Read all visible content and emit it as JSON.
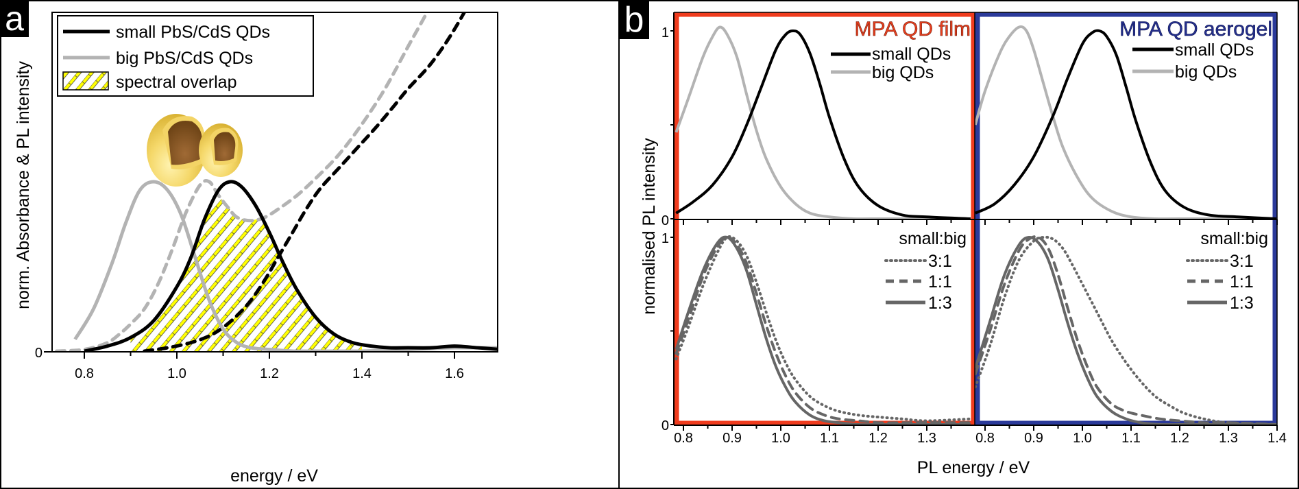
{
  "chart_data": [
    {
      "panel": "a",
      "type": "line",
      "xlabel": "energy / eV",
      "ylabel": "norm. Absorbance & PL intensity",
      "xlim": [
        0.72,
        1.75
      ],
      "ylim": [
        0,
        2.0
      ],
      "xticks": [
        "0.8",
        "1.0",
        "1.2",
        "1.4",
        "1.6"
      ],
      "xtick_values": [
        0.8,
        1.0,
        1.2,
        1.4,
        1.6
      ],
      "yticks": [
        "0"
      ],
      "ytick_values": [
        0
      ],
      "legend": {
        "placement": "top-left",
        "entries": [
          {
            "label": "small PbS/CdS QDs",
            "color": "#000000",
            "style": "solid"
          },
          {
            "label": "big PbS/CdS QDs",
            "color": "#b3b3b3",
            "style": "solid"
          },
          {
            "label": "spectral overlap",
            "color": "#ffff00",
            "style": "hatch"
          }
        ]
      },
      "series": [
        {
          "name": "small PbS/CdS QDs PL",
          "color": "#000000",
          "style": "solid",
          "kind": "PL",
          "x": [
            0.8,
            0.85,
            0.9,
            0.95,
            1.0,
            1.03,
            1.06,
            1.09,
            1.115,
            1.14,
            1.17,
            1.2,
            1.23,
            1.26,
            1.3,
            1.34,
            1.38,
            1.42,
            1.46,
            1.5,
            1.55,
            1.6,
            1.65,
            1.7,
            1.74
          ],
          "y": [
            0.0,
            0.03,
            0.08,
            0.18,
            0.38,
            0.55,
            0.78,
            0.95,
            1.0,
            0.97,
            0.86,
            0.7,
            0.52,
            0.36,
            0.2,
            0.1,
            0.05,
            0.03,
            0.02,
            0.02,
            0.02,
            0.03,
            0.02,
            0.01,
            0.0
          ]
        },
        {
          "name": "big PbS/CdS QDs PL",
          "color": "#b3b3b3",
          "style": "solid",
          "kind": "PL",
          "x": [
            0.78,
            0.82,
            0.86,
            0.89,
            0.92,
            0.95,
            0.98,
            1.01,
            1.04,
            1.07,
            1.1,
            1.13,
            1.16,
            1.2,
            1.25,
            1.3,
            1.4,
            1.5,
            1.6,
            1.7,
            1.74
          ],
          "y": [
            0.07,
            0.25,
            0.52,
            0.76,
            0.95,
            1.0,
            0.95,
            0.8,
            0.55,
            0.3,
            0.13,
            0.05,
            0.02,
            0.01,
            0.0,
            0.0,
            0.0,
            0.01,
            0.02,
            0.02,
            0.03
          ]
        },
        {
          "name": "big PbS/CdS QDs absorbance",
          "color": "#b3b3b3",
          "style": "dashed",
          "kind": "absorbance",
          "x": [
            0.74,
            0.8,
            0.85,
            0.88,
            0.9,
            0.93,
            0.96,
            0.99,
            1.02,
            1.05,
            1.07,
            1.09,
            1.11,
            1.13,
            1.16,
            1.19,
            1.22,
            1.26,
            1.3,
            1.35,
            1.4,
            1.45,
            1.5,
            1.55,
            1.6,
            1.65,
            1.7
          ],
          "y": [
            0.0,
            0.01,
            0.05,
            0.11,
            0.16,
            0.25,
            0.4,
            0.6,
            0.82,
            0.98,
            1.0,
            0.92,
            0.85,
            0.79,
            0.77,
            0.79,
            0.84,
            0.92,
            1.02,
            1.16,
            1.34,
            1.55,
            1.8,
            2.05,
            2.35,
            2.7,
            3.0
          ]
        },
        {
          "name": "small PbS/CdS QDs absorbance",
          "color": "#000000",
          "style": "dashed",
          "kind": "absorbance",
          "x": [
            0.93,
            0.98,
            1.03,
            1.07,
            1.1,
            1.13,
            1.16,
            1.19,
            1.22,
            1.25,
            1.28,
            1.31,
            1.35,
            1.39,
            1.43,
            1.47,
            1.5,
            1.55,
            1.6,
            1.65,
            1.7,
            1.74
          ],
          "y": [
            0.0,
            0.02,
            0.05,
            0.09,
            0.14,
            0.21,
            0.3,
            0.42,
            0.56,
            0.7,
            0.84,
            0.96,
            1.08,
            1.2,
            1.32,
            1.45,
            1.55,
            1.7,
            1.9,
            2.15,
            2.45,
            2.8
          ]
        }
      ],
      "overlap_region": {
        "x_from": 0.9,
        "x_to": 1.4
      }
    },
    {
      "panel": "b-film-top",
      "type": "line",
      "title": "MPA QD film",
      "title_color": "#e8401f",
      "frame_color": "#f03c1e",
      "xlim": [
        0.78,
        1.39
      ],
      "ylim": [
        0,
        1.1
      ],
      "yticks": [
        "0",
        "1"
      ],
      "ytick_values": [
        0,
        1
      ],
      "legend": {
        "placement": "top-right",
        "entries": [
          {
            "label": "small QDs",
            "color": "#000000",
            "style": "solid"
          },
          {
            "label": "big QDs",
            "color": "#b3b3b3",
            "style": "solid"
          }
        ]
      },
      "series": [
        {
          "name": "small QDs",
          "color": "#000000",
          "style": "solid",
          "x": [
            0.785,
            0.82,
            0.86,
            0.9,
            0.93,
            0.96,
            0.99,
            1.01,
            1.025,
            1.04,
            1.06,
            1.08,
            1.1,
            1.13,
            1.16,
            1.2,
            1.25,
            1.3,
            1.39
          ],
          "y": [
            0.03,
            0.09,
            0.18,
            0.33,
            0.5,
            0.7,
            0.9,
            0.98,
            1.0,
            0.98,
            0.88,
            0.72,
            0.54,
            0.32,
            0.17,
            0.07,
            0.02,
            0.01,
            0.0
          ]
        },
        {
          "name": "big QDs",
          "color": "#b3b3b3",
          "style": "solid",
          "x": [
            0.785,
            0.81,
            0.84,
            0.86,
            0.875,
            0.89,
            0.91,
            0.93,
            0.95,
            0.97,
            1.0,
            1.03,
            1.06,
            1.1,
            1.15,
            1.2,
            1.39
          ],
          "y": [
            0.46,
            0.64,
            0.86,
            0.97,
            1.02,
            0.98,
            0.86,
            0.66,
            0.47,
            0.32,
            0.17,
            0.08,
            0.03,
            0.01,
            0.0,
            0.0,
            0.0
          ]
        }
      ]
    },
    {
      "panel": "b-aerogel-top",
      "type": "line",
      "title": "MPA QD aerogel",
      "title_color": "#25308f",
      "frame_color": "#2b3a9a",
      "xlim": [
        0.78,
        1.4
      ],
      "ylim": [
        0,
        1.1
      ],
      "legend": {
        "placement": "top-right",
        "entries": [
          {
            "label": "small QDs",
            "color": "#000000",
            "style": "solid"
          },
          {
            "label": "big QDs",
            "color": "#b3b3b3",
            "style": "solid"
          }
        ]
      },
      "series": [
        {
          "name": "small QDs",
          "color": "#000000",
          "style": "solid",
          "x": [
            0.78,
            0.82,
            0.86,
            0.9,
            0.94,
            0.97,
            1.0,
            1.02,
            1.035,
            1.05,
            1.07,
            1.09,
            1.11,
            1.14,
            1.17,
            1.21,
            1.26,
            1.32,
            1.4
          ],
          "y": [
            0.03,
            0.08,
            0.18,
            0.33,
            0.55,
            0.75,
            0.93,
            0.99,
            1.0,
            0.97,
            0.87,
            0.7,
            0.52,
            0.3,
            0.15,
            0.06,
            0.02,
            0.01,
            0.0
          ]
        },
        {
          "name": "big QDs",
          "color": "#b3b3b3",
          "style": "solid",
          "x": [
            0.78,
            0.8,
            0.83,
            0.85,
            0.87,
            0.885,
            0.9,
            0.92,
            0.94,
            0.96,
            0.99,
            1.02,
            1.06,
            1.1,
            1.15,
            1.2,
            1.4
          ],
          "y": [
            0.5,
            0.68,
            0.88,
            0.97,
            1.02,
            1.0,
            0.9,
            0.72,
            0.54,
            0.38,
            0.22,
            0.11,
            0.04,
            0.01,
            0.0,
            0.0,
            0.0
          ]
        }
      ]
    },
    {
      "panel": "b-film-bottom",
      "type": "line",
      "xlim": [
        0.78,
        1.39
      ],
      "ylim": [
        0,
        1.1
      ],
      "legend": {
        "placement": "top-right",
        "title": "small:big",
        "entries": [
          {
            "label": "3:1",
            "color": "#666666",
            "style": "dotted"
          },
          {
            "label": "1:1",
            "color": "#666666",
            "style": "dashed"
          },
          {
            "label": "1:3",
            "color": "#666666",
            "style": "solid"
          }
        ]
      },
      "series": [
        {
          "name": "3:1",
          "color": "#666666",
          "style": "dotted",
          "x": [
            0.785,
            0.81,
            0.84,
            0.87,
            0.89,
            0.91,
            0.93,
            0.95,
            0.97,
            0.99,
            1.01,
            1.03,
            1.06,
            1.09,
            1.12,
            1.16,
            1.2,
            1.25,
            1.3,
            1.39
          ],
          "y": [
            0.35,
            0.52,
            0.74,
            0.92,
            1.0,
            0.98,
            0.9,
            0.76,
            0.6,
            0.45,
            0.33,
            0.24,
            0.15,
            0.1,
            0.07,
            0.05,
            0.04,
            0.03,
            0.02,
            0.03
          ]
        },
        {
          "name": "1:1",
          "color": "#666666",
          "style": "dashed",
          "x": [
            0.785,
            0.81,
            0.84,
            0.87,
            0.89,
            0.91,
            0.93,
            0.95,
            0.97,
            0.99,
            1.01,
            1.03,
            1.06,
            1.09,
            1.12,
            1.16,
            1.2,
            1.25,
            1.3,
            1.39
          ],
          "y": [
            0.38,
            0.56,
            0.79,
            0.95,
            1.0,
            0.96,
            0.86,
            0.7,
            0.53,
            0.38,
            0.26,
            0.17,
            0.09,
            0.05,
            0.03,
            0.02,
            0.01,
            0.01,
            0.01,
            0.01
          ]
        },
        {
          "name": "1:3",
          "color": "#666666",
          "style": "solid",
          "x": [
            0.785,
            0.81,
            0.84,
            0.87,
            0.89,
            0.91,
            0.93,
            0.95,
            0.97,
            0.99,
            1.01,
            1.03,
            1.06,
            1.09,
            1.12,
            1.16,
            1.2,
            1.25,
            1.3,
            1.39
          ],
          "y": [
            0.4,
            0.6,
            0.82,
            0.97,
            1.0,
            0.94,
            0.82,
            0.64,
            0.46,
            0.31,
            0.2,
            0.12,
            0.05,
            0.02,
            0.01,
            0.0,
            0.0,
            0.0,
            0.0,
            0.0
          ]
        }
      ]
    },
    {
      "panel": "b-aerogel-bottom",
      "type": "line",
      "xlim": [
        0.78,
        1.4
      ],
      "ylim": [
        0,
        1.1
      ],
      "xticks": [
        "0.8",
        "0.9",
        "1.0",
        "1.1",
        "1.2",
        "1.3",
        "1.4"
      ],
      "xtick_values": [
        0.8,
        0.9,
        1.0,
        1.1,
        1.2,
        1.3,
        1.4
      ],
      "legend": {
        "placement": "top-right",
        "title": "small:big",
        "entries": [
          {
            "label": "3:1",
            "color": "#666666",
            "style": "dotted"
          },
          {
            "label": "1:1",
            "color": "#666666",
            "style": "dashed"
          },
          {
            "label": "1:3",
            "color": "#666666",
            "style": "solid"
          }
        ]
      },
      "series": [
        {
          "name": "3:1",
          "color": "#666666",
          "style": "dotted",
          "x": [
            0.78,
            0.81,
            0.84,
            0.87,
            0.9,
            0.92,
            0.94,
            0.96,
            0.98,
            1.0,
            1.03,
            1.06,
            1.09,
            1.12,
            1.15,
            1.18,
            1.21,
            1.25,
            1.3,
            1.4
          ],
          "y": [
            0.2,
            0.42,
            0.68,
            0.88,
            0.98,
            1.0,
            0.99,
            0.94,
            0.85,
            0.75,
            0.6,
            0.45,
            0.33,
            0.23,
            0.15,
            0.1,
            0.06,
            0.03,
            0.01,
            0.0
          ]
        },
        {
          "name": "1:1",
          "color": "#666666",
          "style": "dashed",
          "x": [
            0.78,
            0.81,
            0.84,
            0.87,
            0.89,
            0.91,
            0.93,
            0.95,
            0.97,
            0.99,
            1.01,
            1.03,
            1.06,
            1.09,
            1.12,
            1.16,
            1.2,
            1.25,
            1.3,
            1.4
          ],
          "y": [
            0.27,
            0.5,
            0.75,
            0.93,
            0.99,
            1.0,
            0.94,
            0.8,
            0.62,
            0.45,
            0.31,
            0.2,
            0.11,
            0.07,
            0.05,
            0.03,
            0.02,
            0.01,
            0.01,
            0.0
          ]
        },
        {
          "name": "1:3",
          "color": "#666666",
          "style": "solid",
          "x": [
            0.78,
            0.81,
            0.84,
            0.87,
            0.89,
            0.91,
            0.93,
            0.95,
            0.97,
            0.99,
            1.01,
            1.03,
            1.06,
            1.09,
            1.12,
            1.16,
            1.2,
            1.25,
            1.3,
            1.4
          ],
          "y": [
            0.3,
            0.55,
            0.8,
            0.96,
            1.0,
            0.97,
            0.88,
            0.72,
            0.54,
            0.38,
            0.25,
            0.15,
            0.07,
            0.03,
            0.01,
            0.0,
            0.0,
            0.0,
            0.0,
            0.0
          ]
        }
      ]
    }
  ],
  "panel_a": {
    "label": "a",
    "legend_labels": [
      "small PbS/CdS QDs",
      "big PbS/CdS QDs",
      "spectral overlap"
    ],
    "illustration": "core-shell quantum dots (big and small)",
    "xlabel": "energy / eV",
    "ylabel": "norm. Absorbance & PL intensity",
    "y_zero": "0"
  },
  "panel_b": {
    "label": "b",
    "xlabel": "PL energy / eV",
    "ylabel": "normalised PL intensity",
    "film_title": "MPA QD film",
    "aerogel_title": "MPA QD aerogel",
    "legend_top": [
      "small QDs",
      "big QDs"
    ],
    "legend_bottom_title": "small:big",
    "legend_bottom": [
      "3:1",
      "1:1",
      "1:3"
    ],
    "y_top": [
      "0",
      "1"
    ],
    "y_bottom": [
      "0",
      "1"
    ]
  }
}
